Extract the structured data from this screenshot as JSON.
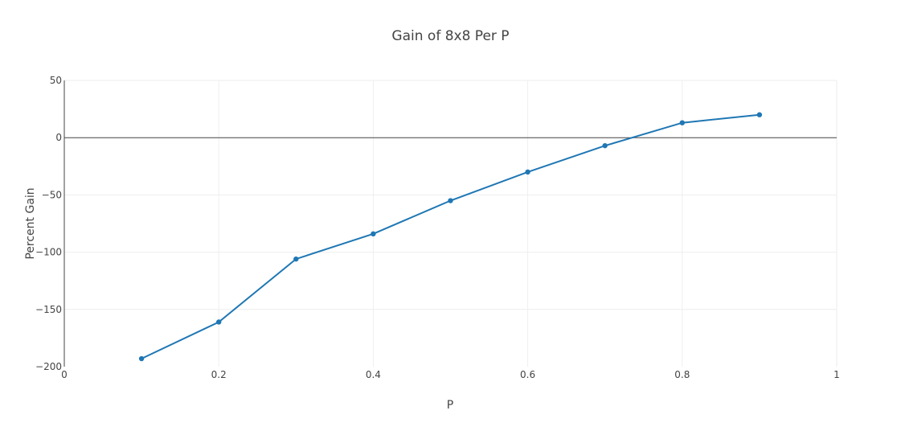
{
  "chart_data": {
    "type": "line",
    "title": "Gain of 8x8 Per P",
    "xlabel": "P",
    "ylabel": "Percent Gain",
    "xlim": [
      0,
      1
    ],
    "ylim": [
      -200,
      50
    ],
    "xticks": [
      0,
      0.2,
      0.4,
      0.6,
      0.8,
      1
    ],
    "xtick_labels": [
      "0",
      "0.2",
      "0.4",
      "0.6",
      "0.8",
      "1"
    ],
    "yticks": [
      -200,
      -150,
      -100,
      -50,
      0,
      50
    ],
    "ytick_labels": [
      "−200",
      "−150",
      "−100",
      "−50",
      "0",
      "50"
    ],
    "grid": true,
    "zeroline": true,
    "series": [
      {
        "color": "#1f77b4",
        "x": [
          0.1,
          0.2,
          0.3,
          0.4,
          0.5,
          0.6,
          0.7,
          0.8,
          0.9
        ],
        "y": [
          -193,
          -161,
          -106,
          -84,
          -55,
          -30,
          -7,
          13,
          20
        ]
      }
    ]
  }
}
